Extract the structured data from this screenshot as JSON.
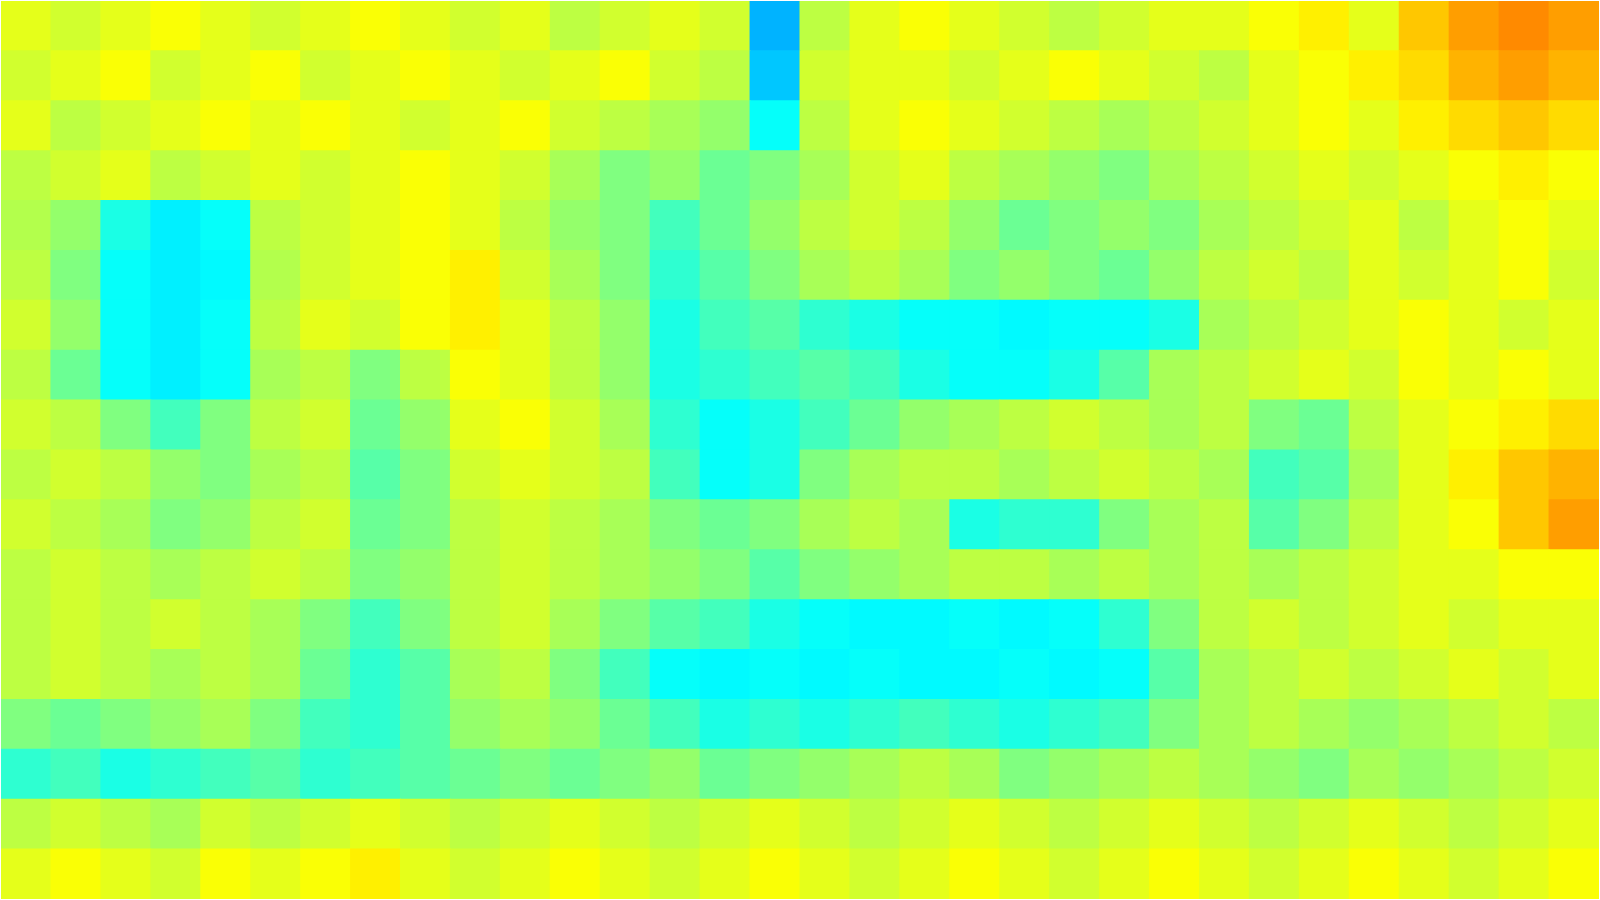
{
  "chart_data": {
    "type": "heatmap",
    "tick_labels": false,
    "color_range": [
      0,
      1
    ],
    "cells": [
      [
        0.6,
        0.58,
        0.6,
        0.62,
        0.6,
        0.58,
        0.6,
        0.62,
        0.6,
        0.58,
        0.6,
        0.56,
        0.58,
        0.6,
        0.58,
        0.3,
        0.56,
        0.6,
        0.62,
        0.6,
        0.58,
        0.56,
        0.58,
        0.6,
        0.6,
        0.62,
        0.64,
        0.6,
        0.68,
        0.72,
        0.74,
        0.72
      ],
      [
        0.58,
        0.6,
        0.62,
        0.58,
        0.6,
        0.62,
        0.58,
        0.6,
        0.62,
        0.6,
        0.58,
        0.6,
        0.62,
        0.58,
        0.56,
        0.32,
        0.58,
        0.6,
        0.6,
        0.58,
        0.6,
        0.62,
        0.6,
        0.58,
        0.56,
        0.6,
        0.62,
        0.64,
        0.66,
        0.7,
        0.72,
        0.7
      ],
      [
        0.6,
        0.56,
        0.58,
        0.6,
        0.62,
        0.6,
        0.62,
        0.6,
        0.58,
        0.6,
        0.62,
        0.58,
        0.56,
        0.54,
        0.52,
        0.38,
        0.56,
        0.6,
        0.62,
        0.6,
        0.58,
        0.56,
        0.54,
        0.56,
        0.58,
        0.6,
        0.62,
        0.6,
        0.64,
        0.66,
        0.68,
        0.66
      ],
      [
        0.56,
        0.58,
        0.6,
        0.56,
        0.58,
        0.6,
        0.58,
        0.6,
        0.62,
        0.6,
        0.58,
        0.54,
        0.5,
        0.52,
        0.48,
        0.5,
        0.54,
        0.58,
        0.6,
        0.56,
        0.54,
        0.52,
        0.5,
        0.54,
        0.56,
        0.58,
        0.6,
        0.58,
        0.6,
        0.62,
        0.64,
        0.62
      ],
      [
        0.55,
        0.52,
        0.4,
        0.36,
        0.38,
        0.56,
        0.58,
        0.6,
        0.62,
        0.6,
        0.56,
        0.52,
        0.5,
        0.44,
        0.48,
        0.52,
        0.56,
        0.58,
        0.56,
        0.52,
        0.48,
        0.5,
        0.52,
        0.5,
        0.54,
        0.56,
        0.58,
        0.6,
        0.56,
        0.6,
        0.62,
        0.6
      ],
      [
        0.56,
        0.5,
        0.38,
        0.36,
        0.37,
        0.55,
        0.58,
        0.6,
        0.62,
        0.64,
        0.58,
        0.54,
        0.5,
        0.42,
        0.46,
        0.5,
        0.54,
        0.56,
        0.54,
        0.5,
        0.52,
        0.5,
        0.48,
        0.52,
        0.56,
        0.58,
        0.56,
        0.6,
        0.58,
        0.6,
        0.62,
        0.58
      ],
      [
        0.58,
        0.52,
        0.38,
        0.36,
        0.38,
        0.56,
        0.6,
        0.58,
        0.62,
        0.64,
        0.6,
        0.56,
        0.52,
        0.4,
        0.44,
        0.46,
        0.42,
        0.4,
        0.38,
        0.38,
        0.37,
        0.38,
        0.38,
        0.4,
        0.54,
        0.56,
        0.58,
        0.6,
        0.62,
        0.6,
        0.58,
        0.6
      ],
      [
        0.56,
        0.48,
        0.38,
        0.36,
        0.38,
        0.54,
        0.56,
        0.5,
        0.56,
        0.62,
        0.6,
        0.56,
        0.52,
        0.4,
        0.42,
        0.44,
        0.46,
        0.44,
        0.4,
        0.38,
        0.38,
        0.4,
        0.46,
        0.54,
        0.56,
        0.58,
        0.6,
        0.58,
        0.62,
        0.6,
        0.62,
        0.6
      ],
      [
        0.58,
        0.56,
        0.5,
        0.44,
        0.5,
        0.56,
        0.58,
        0.48,
        0.52,
        0.6,
        0.62,
        0.58,
        0.54,
        0.42,
        0.38,
        0.4,
        0.44,
        0.48,
        0.52,
        0.54,
        0.56,
        0.58,
        0.56,
        0.54,
        0.56,
        0.5,
        0.48,
        0.56,
        0.6,
        0.62,
        0.64,
        0.66
      ],
      [
        0.56,
        0.58,
        0.56,
        0.52,
        0.5,
        0.54,
        0.56,
        0.46,
        0.5,
        0.58,
        0.6,
        0.58,
        0.56,
        0.44,
        0.38,
        0.4,
        0.5,
        0.54,
        0.56,
        0.56,
        0.54,
        0.56,
        0.58,
        0.56,
        0.54,
        0.44,
        0.46,
        0.54,
        0.6,
        0.64,
        0.68,
        0.7
      ],
      [
        0.58,
        0.56,
        0.54,
        0.5,
        0.52,
        0.56,
        0.58,
        0.48,
        0.5,
        0.56,
        0.58,
        0.56,
        0.54,
        0.5,
        0.48,
        0.5,
        0.54,
        0.56,
        0.54,
        0.4,
        0.42,
        0.42,
        0.5,
        0.54,
        0.56,
        0.46,
        0.5,
        0.56,
        0.6,
        0.62,
        0.68,
        0.72
      ],
      [
        0.56,
        0.58,
        0.56,
        0.54,
        0.56,
        0.58,
        0.56,
        0.5,
        0.52,
        0.56,
        0.58,
        0.56,
        0.54,
        0.52,
        0.5,
        0.46,
        0.5,
        0.52,
        0.54,
        0.56,
        0.56,
        0.54,
        0.56,
        0.54,
        0.56,
        0.54,
        0.56,
        0.58,
        0.6,
        0.6,
        0.62,
        0.62
      ],
      [
        0.56,
        0.58,
        0.56,
        0.58,
        0.56,
        0.54,
        0.5,
        0.44,
        0.5,
        0.56,
        0.58,
        0.54,
        0.5,
        0.46,
        0.44,
        0.4,
        0.38,
        0.37,
        0.37,
        0.38,
        0.37,
        0.38,
        0.42,
        0.5,
        0.56,
        0.58,
        0.56,
        0.58,
        0.6,
        0.58,
        0.6,
        0.6
      ],
      [
        0.56,
        0.58,
        0.56,
        0.54,
        0.56,
        0.54,
        0.48,
        0.42,
        0.46,
        0.54,
        0.56,
        0.5,
        0.44,
        0.38,
        0.37,
        0.38,
        0.37,
        0.38,
        0.37,
        0.37,
        0.38,
        0.37,
        0.38,
        0.46,
        0.54,
        0.56,
        0.58,
        0.56,
        0.58,
        0.6,
        0.58,
        0.6
      ],
      [
        0.5,
        0.48,
        0.5,
        0.52,
        0.54,
        0.5,
        0.44,
        0.42,
        0.46,
        0.52,
        0.54,
        0.52,
        0.48,
        0.44,
        0.4,
        0.42,
        0.4,
        0.42,
        0.44,
        0.42,
        0.4,
        0.42,
        0.44,
        0.5,
        0.54,
        0.56,
        0.54,
        0.52,
        0.54,
        0.56,
        0.58,
        0.56
      ],
      [
        0.42,
        0.44,
        0.4,
        0.42,
        0.44,
        0.46,
        0.42,
        0.44,
        0.46,
        0.48,
        0.5,
        0.48,
        0.5,
        0.52,
        0.48,
        0.5,
        0.52,
        0.54,
        0.56,
        0.54,
        0.5,
        0.52,
        0.54,
        0.56,
        0.54,
        0.52,
        0.5,
        0.54,
        0.52,
        0.54,
        0.56,
        0.58
      ],
      [
        0.56,
        0.58,
        0.56,
        0.54,
        0.58,
        0.56,
        0.58,
        0.6,
        0.58,
        0.56,
        0.58,
        0.6,
        0.58,
        0.56,
        0.58,
        0.6,
        0.58,
        0.56,
        0.58,
        0.6,
        0.58,
        0.56,
        0.58,
        0.6,
        0.58,
        0.56,
        0.58,
        0.6,
        0.58,
        0.56,
        0.58,
        0.6
      ],
      [
        0.6,
        0.62,
        0.6,
        0.58,
        0.62,
        0.6,
        0.62,
        0.64,
        0.6,
        0.58,
        0.6,
        0.62,
        0.6,
        0.58,
        0.6,
        0.62,
        0.6,
        0.58,
        0.6,
        0.62,
        0.6,
        0.58,
        0.6,
        0.62,
        0.6,
        0.58,
        0.6,
        0.62,
        0.6,
        0.58,
        0.6,
        0.62
      ]
    ]
  }
}
